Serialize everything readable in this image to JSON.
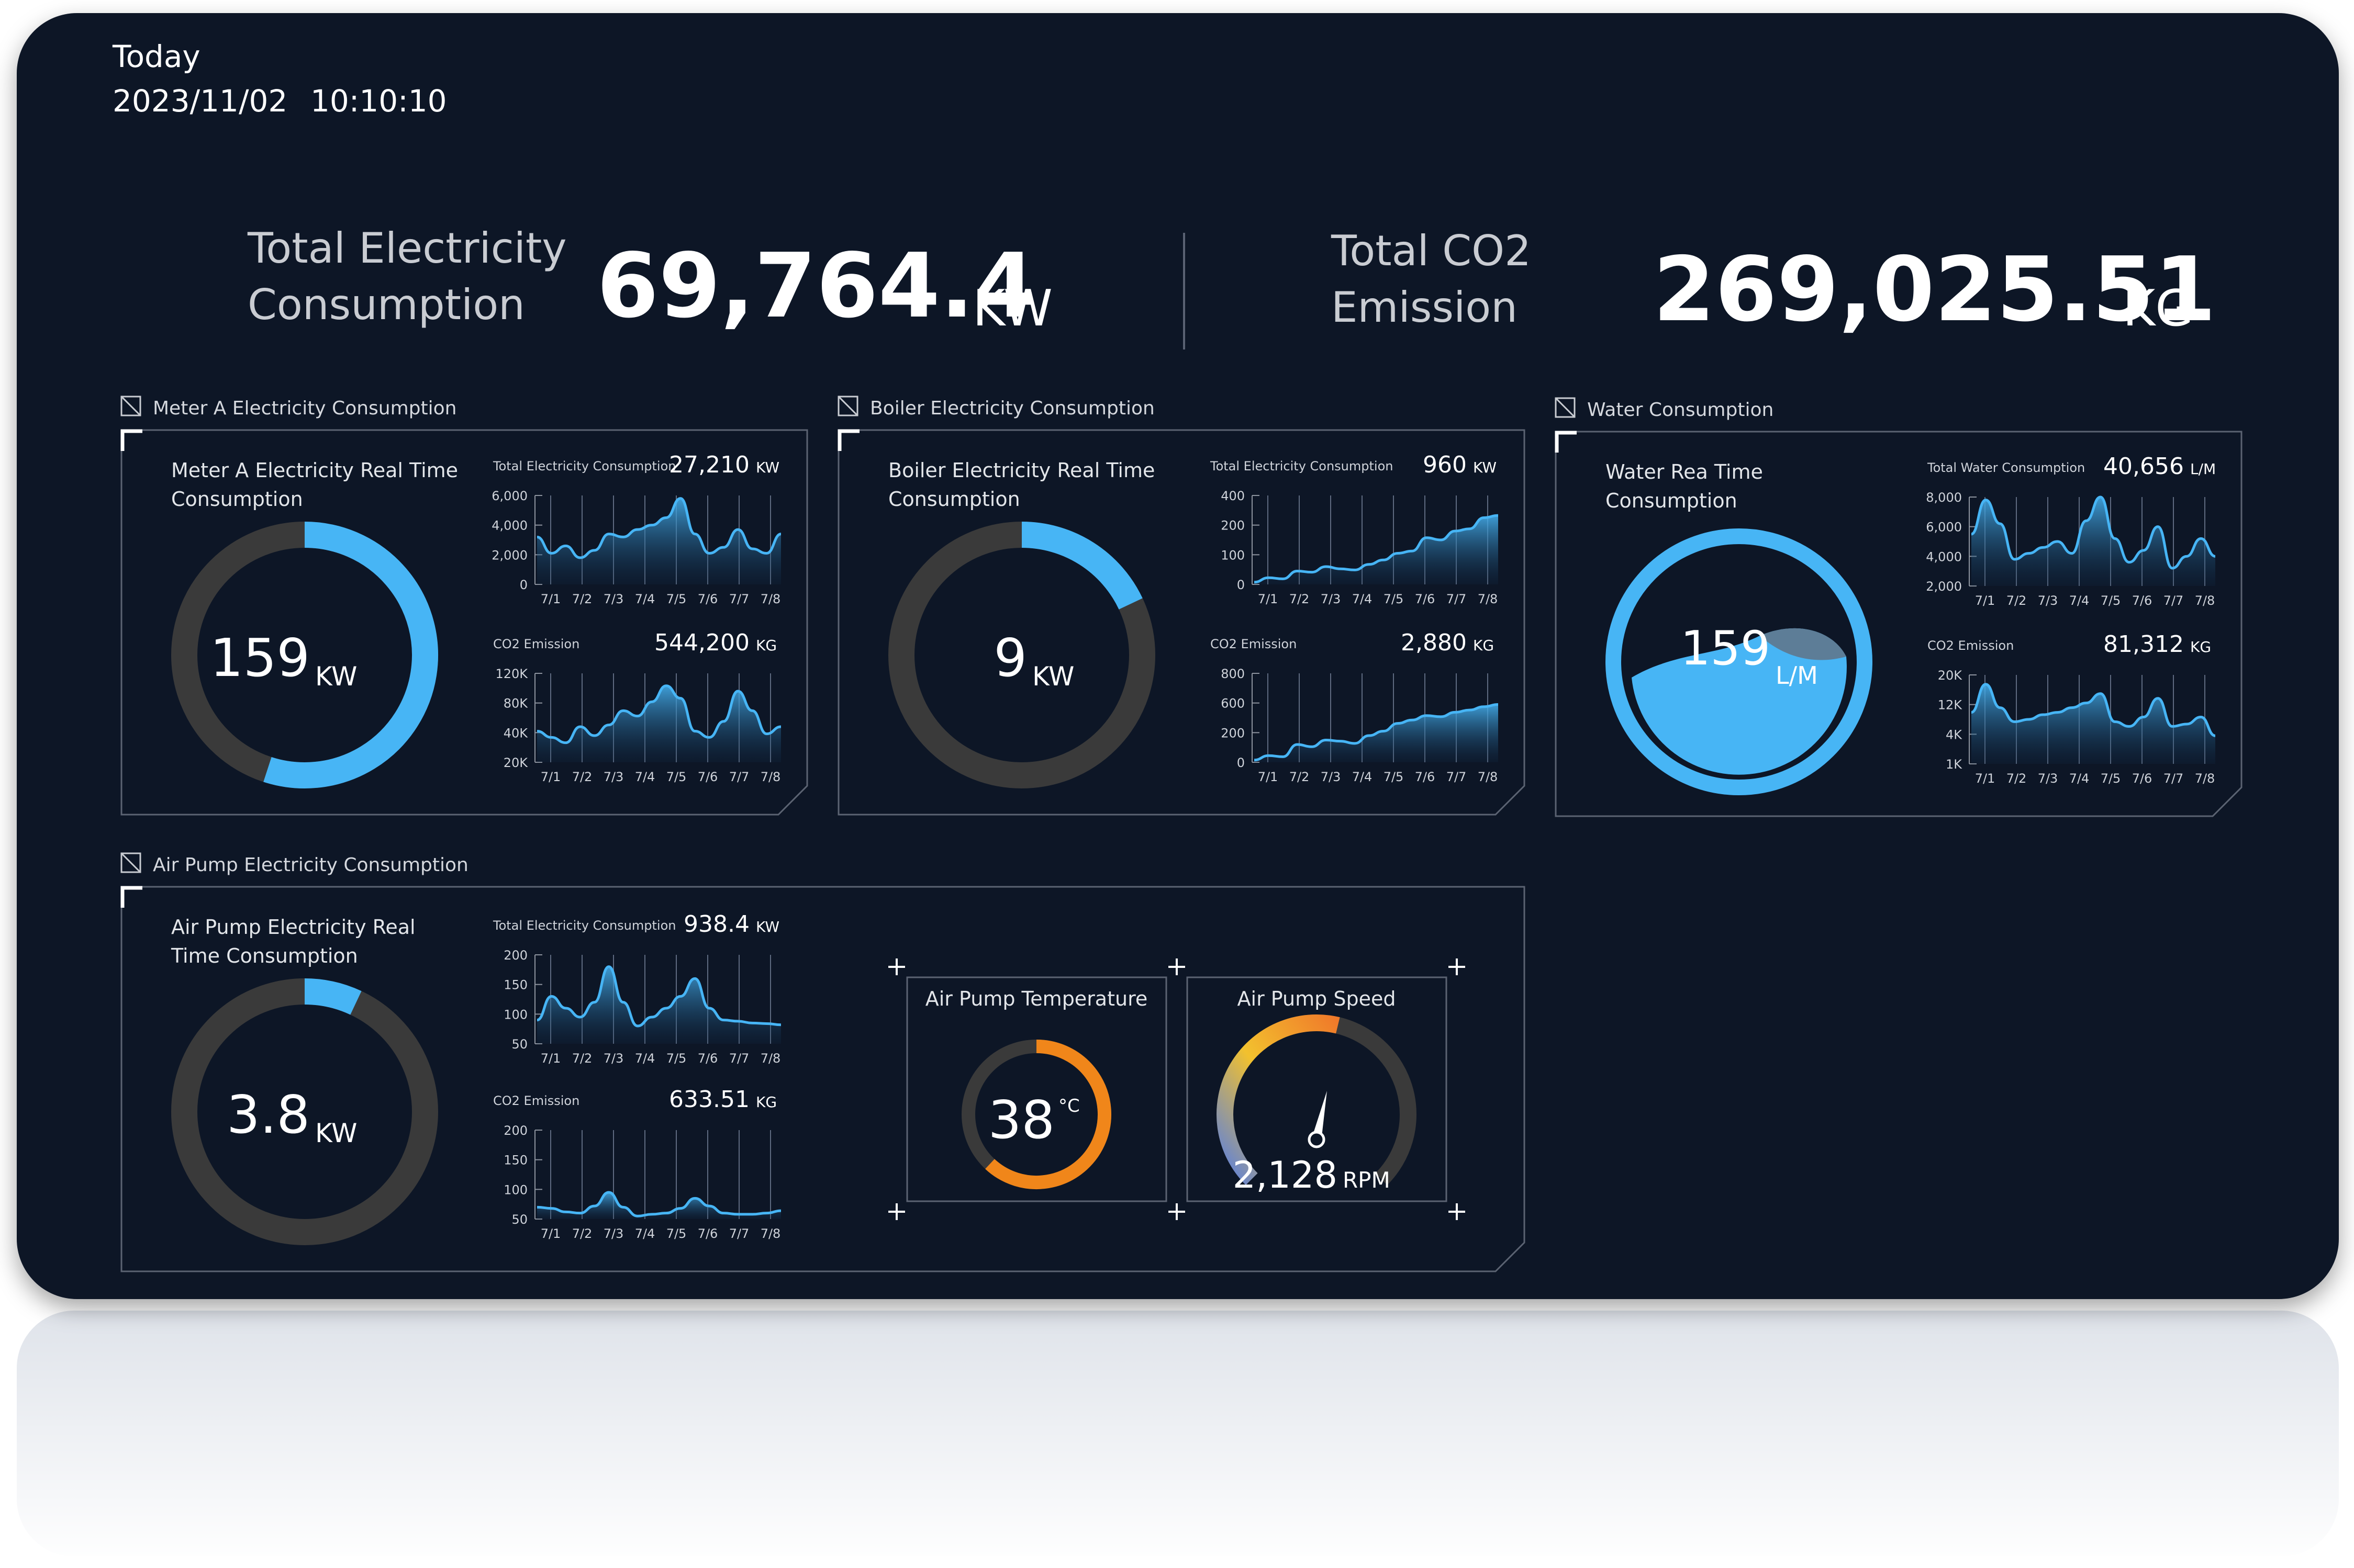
{
  "header": {
    "label": "Today",
    "date": "2023/11/02",
    "time": "10:10:10"
  },
  "totals": {
    "electricity": {
      "title_line1": "Total Electricity",
      "title_line2": "Consumption",
      "value": "69,764.4",
      "unit": "KW"
    },
    "co2": {
      "title_line1": "Total CO2",
      "title_line2": "Emission",
      "value": "269,025.51",
      "unit": "KG"
    }
  },
  "x_labels": [
    "7/1",
    "7/2",
    "7/3",
    "7/4",
    "7/5",
    "7/6",
    "7/7",
    "7/8"
  ],
  "colors": {
    "background": "#0b1526",
    "accent": "#47b5f5",
    "ring_track": "#3a3a3a",
    "temperature": "#f0861a",
    "text": "#ffffff"
  },
  "panels": {
    "meter_a": {
      "section_title": "Meter A Electricity Consumption",
      "realtime_line1": "Meter A Electricity Real Time",
      "realtime_line2": "Consumption",
      "value": "159",
      "unit": "KW",
      "gauge_fraction": 0.55,
      "chart1": {
        "label": "Total Electricity Consumption",
        "value": "27,210",
        "unit": "KW",
        "ticks": [
          "6,000",
          "4,000",
          "2,000",
          "0"
        ],
        "ylim": [
          0,
          6000
        ],
        "values": [
          3200,
          2100,
          2600,
          1800,
          2300,
          3400,
          3200,
          3700,
          4000,
          4500,
          5800,
          3400,
          2100,
          2500,
          3700,
          2400,
          2100,
          3400
        ]
      },
      "chart2": {
        "label": "CO2 Emission",
        "value": "544,200",
        "unit": "KG",
        "ticks": [
          "120K",
          "80K",
          "40K",
          "20K"
        ],
        "ylim": [
          20000,
          120000
        ],
        "values": [
          55000,
          48000,
          42000,
          60000,
          50000,
          62000,
          78000,
          72000,
          88000,
          106000,
          92000,
          55000,
          48000,
          66000,
          100000,
          78000,
          52000,
          60000
        ]
      }
    },
    "boiler": {
      "section_title": "Boiler Electricity Consumption",
      "realtime_line1": "Boiler Electricity Real Time",
      "realtime_line2": "Consumption",
      "value": "9",
      "unit": "KW",
      "gauge_fraction": 0.18,
      "chart1": {
        "label": "Total Electricity Consumption",
        "value": "960",
        "unit": "KW",
        "ticks": [
          "400",
          "200",
          "100",
          "0"
        ],
        "ylim": [
          0,
          400
        ],
        "values": [
          10,
          30,
          25,
          60,
          55,
          80,
          70,
          65,
          90,
          110,
          140,
          150,
          210,
          200,
          240,
          250,
          300,
          310
        ]
      },
      "chart2": {
        "label": "CO2 Emission",
        "value": "2,880",
        "unit": "KG",
        "ticks": [
          "800",
          "600",
          "200",
          "0"
        ],
        "ylim": [
          0,
          800
        ],
        "values": [
          20,
          60,
          50,
          160,
          140,
          200,
          190,
          170,
          240,
          280,
          350,
          380,
          420,
          410,
          450,
          470,
          500,
          520
        ]
      }
    },
    "water": {
      "section_title": "Water Consumption",
      "realtime_line1": "Water Rea Time",
      "realtime_line2": "Consumption",
      "value": "159",
      "unit": "L/M",
      "chart1": {
        "label": "Total Water Consumption",
        "value": "40,656",
        "unit": "L/M",
        "ticks": [
          "8,000",
          "6,000",
          "4,000",
          "2,000"
        ],
        "ylim": [
          2000,
          8000
        ],
        "values": [
          5500,
          7800,
          6200,
          3800,
          4200,
          4600,
          5000,
          4200,
          6400,
          8000,
          5200,
          3600,
          4400,
          6000,
          3200,
          4000,
          5200,
          4000
        ]
      },
      "chart2": {
        "label": "CO2 Emission",
        "value": "81,312",
        "unit": "KG",
        "ticks": [
          "20K",
          "12K",
          "4K",
          "1K"
        ],
        "ylim": [
          1000,
          20000
        ],
        "values": [
          12000,
          18000,
          13000,
          10000,
          10500,
          11500,
          12000,
          13000,
          14000,
          16000,
          10000,
          9000,
          11000,
          15000,
          9000,
          9500,
          11000,
          7000
        ]
      }
    },
    "air_pump": {
      "section_title": "Air Pump Electricity Consumption",
      "realtime_line1": "Air Pump Electricity Real",
      "realtime_line2": "Time Consumption",
      "value": "3.8",
      "unit": "KW",
      "gauge_fraction": 0.07,
      "chart1": {
        "label": "Total Electricity Consumption",
        "value": "938.4",
        "unit": "KW",
        "ticks": [
          "200",
          "150",
          "100",
          "50"
        ],
        "ylim": [
          50,
          200
        ],
        "values": [
          90,
          130,
          110,
          95,
          120,
          180,
          120,
          80,
          95,
          110,
          130,
          160,
          110,
          90,
          88,
          85,
          84,
          82
        ]
      },
      "chart2": {
        "label": "CO2 Emission",
        "value": "633.51",
        "unit": "KG",
        "ticks": [
          "200",
          "150",
          "100",
          "50"
        ],
        "ylim": [
          50,
          200
        ],
        "values": [
          70,
          68,
          62,
          60,
          72,
          95,
          70,
          55,
          58,
          60,
          68,
          85,
          72,
          60,
          58,
          58,
          60,
          64
        ]
      },
      "temperature": {
        "label": "Air Pump Temperature",
        "value": "38",
        "unit": "°C",
        "fraction": 0.62
      },
      "speed": {
        "label": "Air Pump Speed",
        "value": "2,128",
        "unit": "RPM",
        "fraction": 0.55
      }
    }
  }
}
